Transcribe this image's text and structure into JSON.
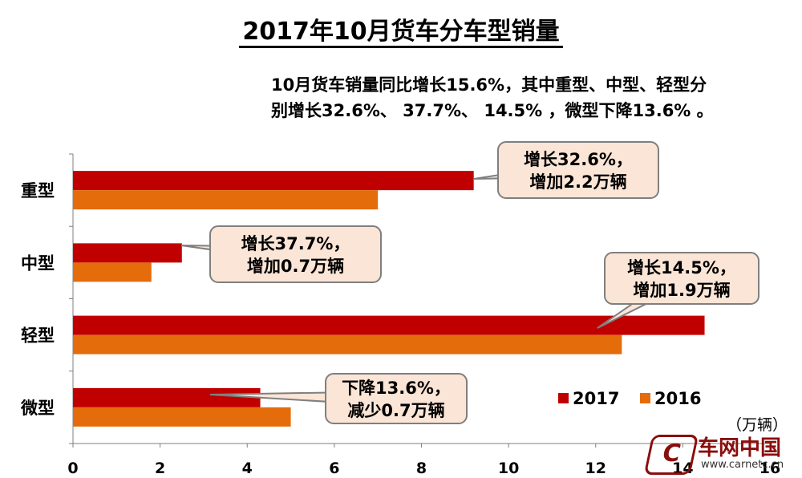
{
  "title": "2017年10月货车分车型销量",
  "subtitle_line1": "10月货车销量同比增长15.6%，其中重型、中型、轻型分",
  "subtitle_line2": "别增长32.6%、 37.7%、 14.5% ，微型下降13.6% 。",
  "unit": "（万辆）",
  "logo": {
    "mark": "C",
    "name": "车网中国",
    "url": "www.carnetc.cn"
  },
  "colors": {
    "s2017": "#c00000",
    "s2016": "#e46c0a",
    "callout_fill": "#fbe5d6",
    "callout_stroke": "#7f7f7f"
  },
  "chart_data": {
    "type": "bar",
    "orientation": "horizontal",
    "categories": [
      "重型",
      "中型",
      "轻型",
      "微型"
    ],
    "series": [
      {
        "name": "2017",
        "values": [
          9.2,
          2.5,
          14.5,
          4.3
        ]
      },
      {
        "name": "2016",
        "values": [
          7.0,
          1.8,
          12.6,
          5.0
        ]
      }
    ],
    "xlim": [
      0,
      16
    ],
    "xticks": [
      "0",
      "2",
      "4",
      "6",
      "8",
      "10",
      "12",
      "14",
      "16"
    ],
    "legend_position": "bottom-right",
    "annotations": [
      {
        "category": "重型",
        "line1": "增长32.6%，",
        "line2": "增加2.2万辆"
      },
      {
        "category": "中型",
        "line1": "增长37.7%，",
        "line2": "增加0.7万辆"
      },
      {
        "category": "轻型",
        "line1": "增长14.5%，",
        "line2": "增加1.9万辆"
      },
      {
        "category": "微型",
        "line1": "下降13.6%，",
        "line2": "减少0.7万辆"
      }
    ]
  }
}
